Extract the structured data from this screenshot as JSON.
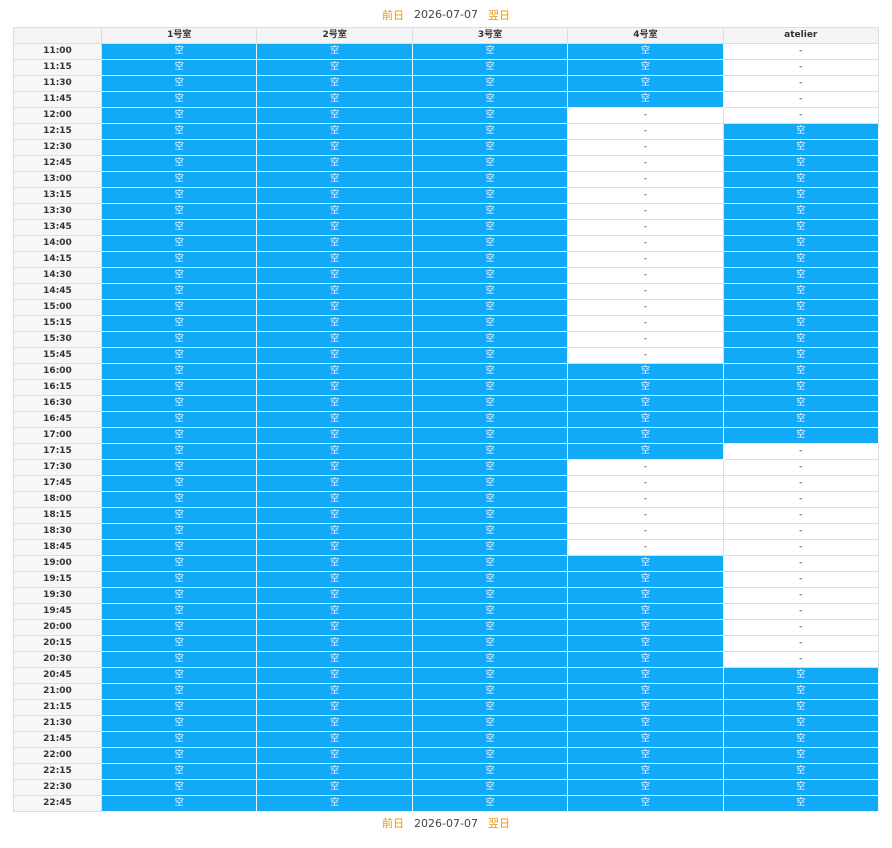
{
  "nav": {
    "prev_label": "前日",
    "date": "2026-07-07",
    "next_label": "翌日"
  },
  "columns": [
    "",
    "1号室",
    "2号室",
    "3号室",
    "4号室",
    "atelier"
  ],
  "open_label": "空",
  "closed_label": "-",
  "colors": {
    "open": "#12aaf6",
    "closed": "#ffffff",
    "nav_link": "#e8960c"
  },
  "rows": [
    {
      "time": "11:00",
      "slots": [
        "空",
        "空",
        "空",
        "空",
        "-"
      ]
    },
    {
      "time": "11:15",
      "slots": [
        "空",
        "空",
        "空",
        "空",
        "-"
      ]
    },
    {
      "time": "11:30",
      "slots": [
        "空",
        "空",
        "空",
        "空",
        "-"
      ]
    },
    {
      "time": "11:45",
      "slots": [
        "空",
        "空",
        "空",
        "空",
        "-"
      ]
    },
    {
      "time": "12:00",
      "slots": [
        "空",
        "空",
        "空",
        "-",
        "-"
      ]
    },
    {
      "time": "12:15",
      "slots": [
        "空",
        "空",
        "空",
        "-",
        "空"
      ]
    },
    {
      "time": "12:30",
      "slots": [
        "空",
        "空",
        "空",
        "-",
        "空"
      ]
    },
    {
      "time": "12:45",
      "slots": [
        "空",
        "空",
        "空",
        "-",
        "空"
      ]
    },
    {
      "time": "13:00",
      "slots": [
        "空",
        "空",
        "空",
        "-",
        "空"
      ]
    },
    {
      "time": "13:15",
      "slots": [
        "空",
        "空",
        "空",
        "-",
        "空"
      ]
    },
    {
      "time": "13:30",
      "slots": [
        "空",
        "空",
        "空",
        "-",
        "空"
      ]
    },
    {
      "time": "13:45",
      "slots": [
        "空",
        "空",
        "空",
        "-",
        "空"
      ]
    },
    {
      "time": "14:00",
      "slots": [
        "空",
        "空",
        "空",
        "-",
        "空"
      ]
    },
    {
      "time": "14:15",
      "slots": [
        "空",
        "空",
        "空",
        "-",
        "空"
      ]
    },
    {
      "time": "14:30",
      "slots": [
        "空",
        "空",
        "空",
        "-",
        "空"
      ]
    },
    {
      "time": "14:45",
      "slots": [
        "空",
        "空",
        "空",
        "-",
        "空"
      ]
    },
    {
      "time": "15:00",
      "slots": [
        "空",
        "空",
        "空",
        "-",
        "空"
      ]
    },
    {
      "time": "15:15",
      "slots": [
        "空",
        "空",
        "空",
        "-",
        "空"
      ]
    },
    {
      "time": "15:30",
      "slots": [
        "空",
        "空",
        "空",
        "-",
        "空"
      ]
    },
    {
      "time": "15:45",
      "slots": [
        "空",
        "空",
        "空",
        "-",
        "空"
      ]
    },
    {
      "time": "16:00",
      "slots": [
        "空",
        "空",
        "空",
        "空",
        "空"
      ]
    },
    {
      "time": "16:15",
      "slots": [
        "空",
        "空",
        "空",
        "空",
        "空"
      ]
    },
    {
      "time": "16:30",
      "slots": [
        "空",
        "空",
        "空",
        "空",
        "空"
      ]
    },
    {
      "time": "16:45",
      "slots": [
        "空",
        "空",
        "空",
        "空",
        "空"
      ]
    },
    {
      "time": "17:00",
      "slots": [
        "空",
        "空",
        "空",
        "空",
        "空"
      ]
    },
    {
      "time": "17:15",
      "slots": [
        "空",
        "空",
        "空",
        "空",
        "-"
      ]
    },
    {
      "time": "17:30",
      "slots": [
        "空",
        "空",
        "空",
        "-",
        "-"
      ]
    },
    {
      "time": "17:45",
      "slots": [
        "空",
        "空",
        "空",
        "-",
        "-"
      ]
    },
    {
      "time": "18:00",
      "slots": [
        "空",
        "空",
        "空",
        "-",
        "-"
      ]
    },
    {
      "time": "18:15",
      "slots": [
        "空",
        "空",
        "空",
        "-",
        "-"
      ]
    },
    {
      "time": "18:30",
      "slots": [
        "空",
        "空",
        "空",
        "-",
        "-"
      ]
    },
    {
      "time": "18:45",
      "slots": [
        "空",
        "空",
        "空",
        "-",
        "-"
      ]
    },
    {
      "time": "19:00",
      "slots": [
        "空",
        "空",
        "空",
        "空",
        "-"
      ]
    },
    {
      "time": "19:15",
      "slots": [
        "空",
        "空",
        "空",
        "空",
        "-"
      ]
    },
    {
      "time": "19:30",
      "slots": [
        "空",
        "空",
        "空",
        "空",
        "-"
      ]
    },
    {
      "time": "19:45",
      "slots": [
        "空",
        "空",
        "空",
        "空",
        "-"
      ]
    },
    {
      "time": "20:00",
      "slots": [
        "空",
        "空",
        "空",
        "空",
        "-"
      ]
    },
    {
      "time": "20:15",
      "slots": [
        "空",
        "空",
        "空",
        "空",
        "-"
      ]
    },
    {
      "time": "20:30",
      "slots": [
        "空",
        "空",
        "空",
        "空",
        "-"
      ]
    },
    {
      "time": "20:45",
      "slots": [
        "空",
        "空",
        "空",
        "空",
        "空"
      ]
    },
    {
      "time": "21:00",
      "slots": [
        "空",
        "空",
        "空",
        "空",
        "空"
      ]
    },
    {
      "time": "21:15",
      "slots": [
        "空",
        "空",
        "空",
        "空",
        "空"
      ]
    },
    {
      "time": "21:30",
      "slots": [
        "空",
        "空",
        "空",
        "空",
        "空"
      ]
    },
    {
      "time": "21:45",
      "slots": [
        "空",
        "空",
        "空",
        "空",
        "空"
      ]
    },
    {
      "time": "22:00",
      "slots": [
        "空",
        "空",
        "空",
        "空",
        "空"
      ]
    },
    {
      "time": "22:15",
      "slots": [
        "空",
        "空",
        "空",
        "空",
        "空"
      ]
    },
    {
      "time": "22:30",
      "slots": [
        "空",
        "空",
        "空",
        "空",
        "空"
      ]
    },
    {
      "time": "22:45",
      "slots": [
        "空",
        "空",
        "空",
        "空",
        "空"
      ]
    }
  ]
}
